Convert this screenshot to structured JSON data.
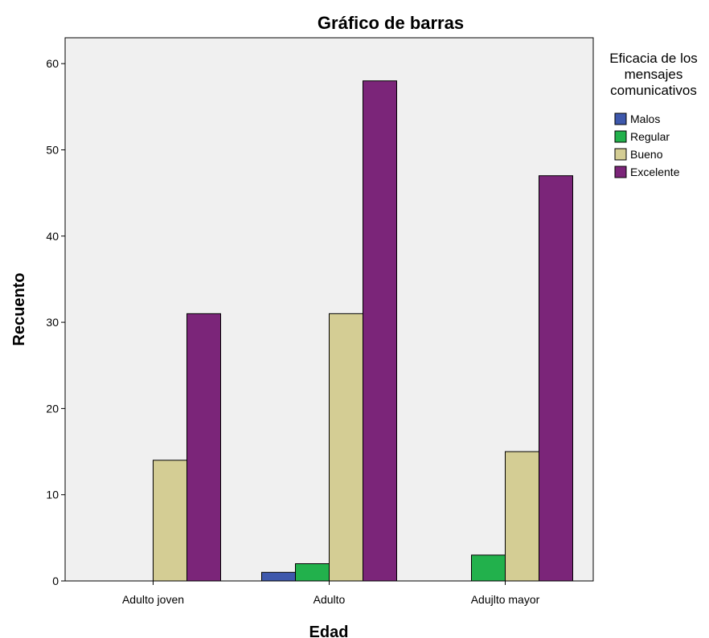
{
  "chart_data": {
    "type": "bar",
    "title": "Gráfico de barras",
    "xlabel": "Edad",
    "ylabel": "Recuento",
    "categories": [
      "Adulto joven",
      "Adulto",
      "Adujlto mayor"
    ],
    "ylim": [
      0,
      63
    ],
    "yticks": [
      0,
      10,
      20,
      30,
      40,
      50,
      60
    ],
    "grid": false,
    "legend": {
      "title_lines": [
        "Eficacia de los",
        "mensajes",
        "comunicativos"
      ],
      "placement": "right"
    },
    "series": [
      {
        "name": "Malos",
        "color": "#3e58ac",
        "values": [
          0,
          1,
          0
        ]
      },
      {
        "name": "Regular",
        "color": "#22b14c",
        "values": [
          0,
          2,
          3
        ]
      },
      {
        "name": "Bueno",
        "color": "#d4cd94",
        "values": [
          14,
          31,
          15
        ]
      },
      {
        "name": "Excelente",
        "color": "#7b2579",
        "values": [
          31,
          58,
          47
        ]
      }
    ],
    "plot_background": "#f0f0f0"
  }
}
